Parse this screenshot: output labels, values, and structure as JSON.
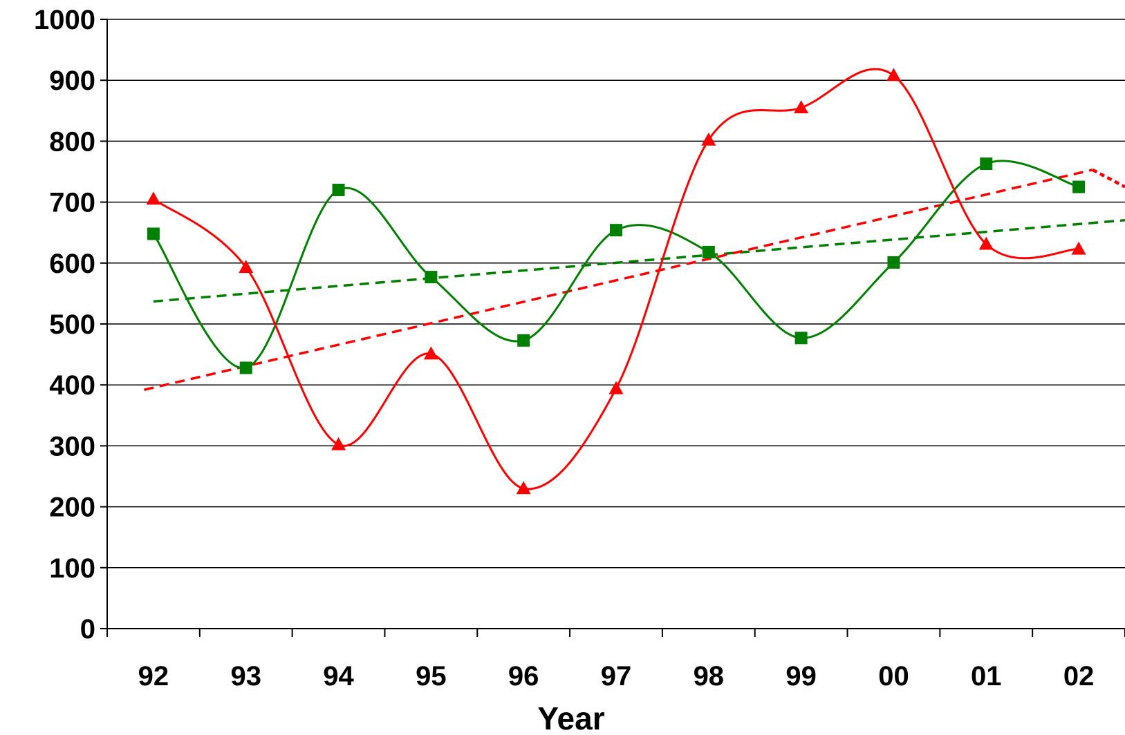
{
  "chart_data": {
    "type": "line",
    "title": "",
    "xlabel": "Year",
    "ylabel": "",
    "categories": [
      "92",
      "93",
      "94",
      "95",
      "96",
      "97",
      "98",
      "99",
      "00",
      "01",
      "02"
    ],
    "ylim": [
      0,
      1000
    ],
    "yticks": [
      "0",
      "100",
      "200",
      "300",
      "400",
      "500",
      "600",
      "700",
      "800",
      "900",
      "1000"
    ],
    "grid": {
      "horizontal": true,
      "vertical": false
    },
    "series": [
      {
        "marker": "square",
        "color": "#008000",
        "smooth": true,
        "values": [
          648,
          428,
          720,
          577,
          473,
          654,
          618,
          477,
          601,
          763,
          725
        ],
        "trendline": {
          "style": "dashed",
          "start": 537,
          "end": 683,
          "x_start": 0,
          "x_end": 11.5
        }
      },
      {
        "marker": "triangle",
        "color": "#ff0000",
        "smooth": true,
        "values": [
          705,
          593,
          302,
          451,
          230,
          394,
          802,
          855,
          908,
          631,
          623
        ],
        "trendline": {
          "style": "dashed",
          "start": 392,
          "end": 753,
          "x_start": -0.1,
          "x_end": 10.15,
          "tail": 725
        }
      }
    ]
  }
}
